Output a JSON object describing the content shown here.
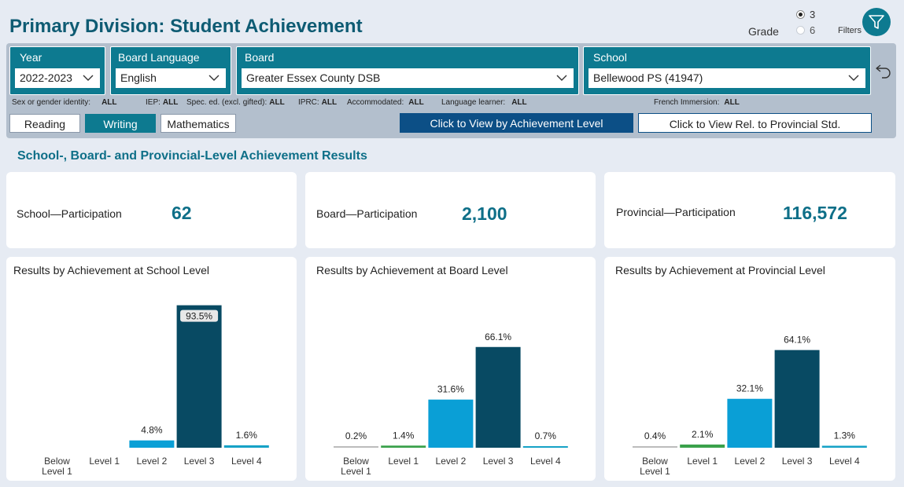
{
  "header": {
    "title": "Primary Division: Student Achievement",
    "grade_label": "Grade",
    "grade_options": [
      {
        "label": "3",
        "selected": true
      },
      {
        "label": "6",
        "selected": false
      }
    ],
    "filters_label": "Filters",
    "filter_icon": "funnel-icon"
  },
  "slicers": {
    "year": {
      "label": "Year",
      "value": "2022-2023"
    },
    "board_language": {
      "label": "Board Language",
      "value": "English"
    },
    "board": {
      "label": "Board",
      "value": "Greater Essex County DSB"
    },
    "school": {
      "label": "School",
      "value": "Bellewood PS (41947)"
    }
  },
  "filters": [
    {
      "label": "Sex or gender identity:",
      "value": "ALL"
    },
    {
      "label": "IEP:",
      "value": "ALL"
    },
    {
      "label": "Spec. ed. (excl. gifted):",
      "value": "ALL"
    },
    {
      "label": "IPRC:",
      "value": "ALL"
    },
    {
      "label": "Accommodated:",
      "value": "ALL"
    },
    {
      "label": "Language learner:",
      "value": "ALL"
    },
    {
      "label": "French Immersion:",
      "value": "ALL"
    }
  ],
  "subject_tabs": [
    {
      "label": "Reading",
      "active": false
    },
    {
      "label": "Writing",
      "active": true
    },
    {
      "label": "Mathematics",
      "active": false
    }
  ],
  "view_buttons": {
    "achievement": "Click to View by Achievement Level",
    "provincial": "Click to View Rel. to Provincial Std."
  },
  "section_title": "School-, Board- and Provincial-Level Achievement Results",
  "kpis": [
    {
      "label": "School—Participation",
      "value": "62"
    },
    {
      "label": "Board—Participation",
      "value": "2,100"
    },
    {
      "label": "Provincial—Participation",
      "value": "116,572"
    }
  ],
  "colors": {
    "teal": "#0d7a90",
    "bar_below": "#bcbcbc",
    "bar_level1": "#3aa14b",
    "bar_level2": "#0a9fd6",
    "bar_level3": "#084a63",
    "bar_level4": "#16a2c6",
    "primary_button": "#0c4f86"
  },
  "chart_data": [
    {
      "type": "bar",
      "title": "Results by Achievement at School Level",
      "categories": [
        "Below Level 1",
        "Level 1",
        "Level 2",
        "Level 3",
        "Level 4"
      ],
      "values": [
        0,
        0,
        4.8,
        93.5,
        1.6
      ],
      "labels": [
        "",
        "",
        "4.8%",
        "93.5%",
        "1.6%"
      ],
      "ylim": [
        0,
        100
      ],
      "highlighted_label_index": 3
    },
    {
      "type": "bar",
      "title": "Results by Achievement at Board Level",
      "categories": [
        "Below Level 1",
        "Level 1",
        "Level 2",
        "Level 3",
        "Level 4"
      ],
      "values": [
        0.2,
        1.4,
        31.6,
        66.1,
        0.7
      ],
      "labels": [
        "0.2%",
        "1.4%",
        "31.6%",
        "66.1%",
        "0.7%"
      ],
      "ylim": [
        0,
        100
      ]
    },
    {
      "type": "bar",
      "title": "Results by Achievement at Provincial Level",
      "categories": [
        "Below Level 1",
        "Level 1",
        "Level 2",
        "Level 3",
        "Level 4"
      ],
      "values": [
        0.4,
        2.1,
        32.1,
        64.1,
        1.3
      ],
      "labels": [
        "0.4%",
        "2.1%",
        "32.1%",
        "64.1%",
        "1.3%"
      ],
      "ylim": [
        0,
        100
      ]
    }
  ]
}
